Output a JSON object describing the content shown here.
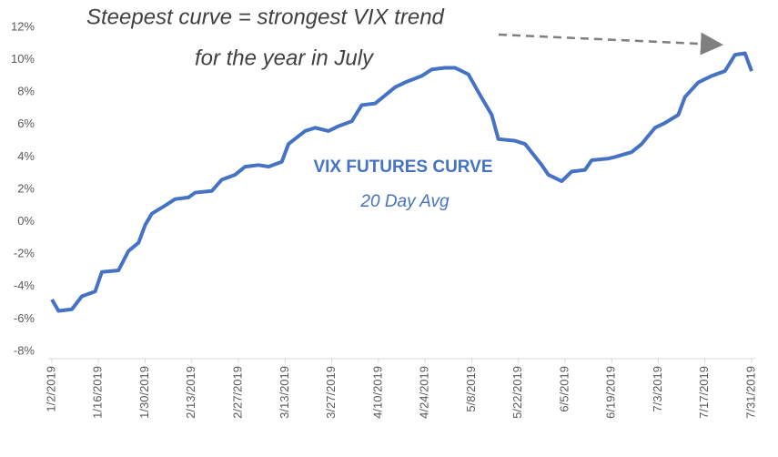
{
  "chart_data": {
    "type": "line",
    "title": "VIX FUTURES CURVE",
    "subtitle": "20 Day Avg",
    "annotations": [
      "Steepest curve = strongest VIX trend",
      "for the year in July"
    ],
    "x": [
      "1/2/2019",
      "1/4/2019",
      "1/8/2019",
      "1/11/2019",
      "1/15/2019",
      "1/17/2019",
      "1/22/2019",
      "1/25/2019",
      "1/28/2019",
      "1/30/2019",
      "2/1/2019",
      "2/5/2019",
      "2/8/2019",
      "2/12/2019",
      "2/14/2019",
      "2/19/2019",
      "2/22/2019",
      "2/26/2019",
      "3/1/2019",
      "3/5/2019",
      "3/8/2019",
      "3/12/2019",
      "3/14/2019",
      "3/19/2019",
      "3/22/2019",
      "3/26/2019",
      "3/29/2019",
      "4/2/2019",
      "4/5/2019",
      "4/9/2019",
      "4/12/2019",
      "4/15/2019",
      "4/18/2019",
      "4/23/2019",
      "4/26/2019",
      "4/30/2019",
      "5/3/2019",
      "5/7/2019",
      "5/10/2019",
      "5/14/2019",
      "5/16/2019",
      "5/21/2019",
      "5/24/2019",
      "5/29/2019",
      "5/31/2019",
      "6/4/2019",
      "6/7/2019",
      "6/11/2019",
      "6/13/2019",
      "6/18/2019",
      "6/20/2019",
      "6/25/2019",
      "6/28/2019",
      "7/2/2019",
      "7/5/2019",
      "7/9/2019",
      "7/11/2019",
      "7/15/2019",
      "7/17/2019",
      "7/19/2019",
      "7/23/2019",
      "7/26/2019",
      "7/29/2019",
      "7/31/2019"
    ],
    "series": [
      {
        "name": "VIX Futures Curve",
        "color": "#4472c4",
        "values": [
          -4.8,
          -5.5,
          -5.4,
          -4.6,
          -4.3,
          -3.1,
          -3.0,
          -1.8,
          -1.3,
          -0.2,
          0.5,
          1.0,
          1.4,
          1.5,
          1.8,
          1.9,
          2.6,
          2.9,
          3.4,
          3.5,
          3.4,
          3.7,
          4.8,
          5.6,
          5.8,
          5.6,
          5.9,
          6.2,
          7.2,
          7.3,
          7.8,
          8.3,
          8.6,
          9.0,
          9.4,
          9.5,
          9.5,
          9.1,
          8.0,
          6.6,
          5.1,
          5.0,
          4.8,
          3.5,
          2.9,
          2.5,
          3.1,
          3.2,
          3.8,
          3.9,
          4.0,
          4.3,
          4.8,
          5.8,
          6.1,
          6.6,
          7.7,
          8.6,
          8.8,
          9.0,
          9.3,
          10.3,
          10.4,
          9.3
        ]
      }
    ],
    "xlim": [
      "1/2/2019",
      "7/31/2019"
    ],
    "xticks": [
      "1/2/2019",
      "1/16/2019",
      "1/30/2019",
      "2/13/2019",
      "2/27/2019",
      "3/13/2019",
      "3/27/2019",
      "4/10/2019",
      "4/24/2019",
      "5/8/2019",
      "5/22/2019",
      "6/5/2019",
      "6/19/2019",
      "7/3/2019",
      "7/17/2019",
      "7/31/2019"
    ],
    "ylim": [
      -8,
      12
    ],
    "yticks": [
      {
        "value": -8,
        "label": "-8%"
      },
      {
        "value": -6,
        "label": "-6%"
      },
      {
        "value": -4,
        "label": "-4%"
      },
      {
        "value": -2,
        "label": "-2%"
      },
      {
        "value": 0,
        "label": "0%"
      },
      {
        "value": 2,
        "label": "2%"
      },
      {
        "value": 4,
        "label": "4%"
      },
      {
        "value": 6,
        "label": "6%"
      },
      {
        "value": 8,
        "label": "8%"
      },
      {
        "value": 10,
        "label": "10%"
      },
      {
        "value": 12,
        "label": "12%"
      }
    ],
    "grid": false
  }
}
